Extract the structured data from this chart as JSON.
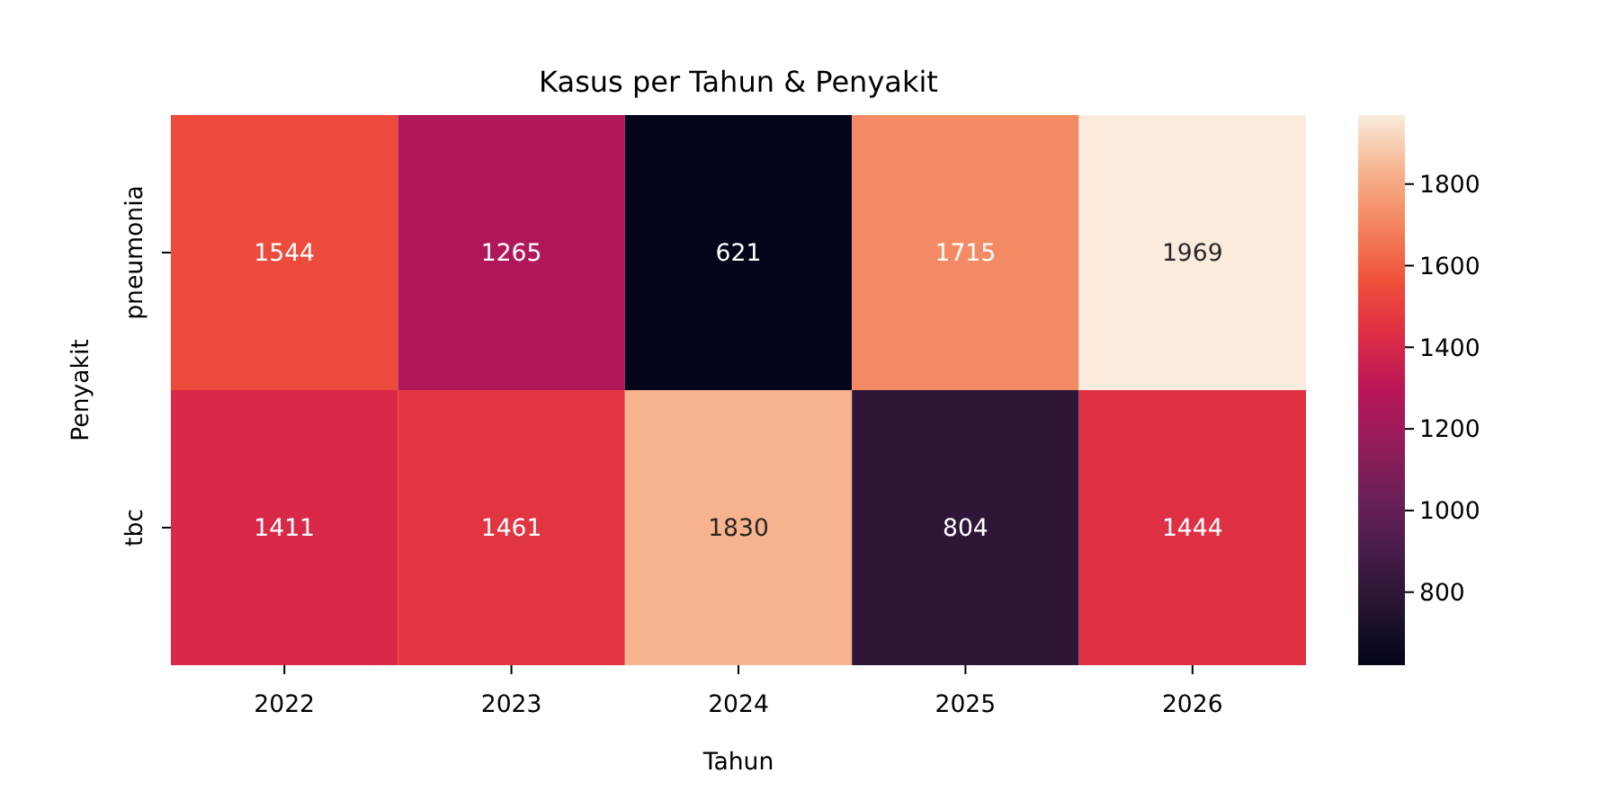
{
  "chart_data": {
    "type": "heatmap",
    "title": "Kasus per Tahun & Penyakit",
    "xlabel": "Tahun",
    "ylabel": "Penyakit",
    "categories": [
      "2022",
      "2023",
      "2024",
      "2025",
      "2026"
    ],
    "y_categories": [
      "pneumonia",
      "tbc"
    ],
    "cells": [
      [
        1544,
        1265,
        621,
        1715,
        1969
      ],
      [
        1411,
        1461,
        1830,
        804,
        1444
      ]
    ],
    "clim": [
      621,
      1969
    ],
    "cticks": [
      800,
      1000,
      1200,
      1400,
      1600,
      1800
    ],
    "data_labels": true
  }
}
